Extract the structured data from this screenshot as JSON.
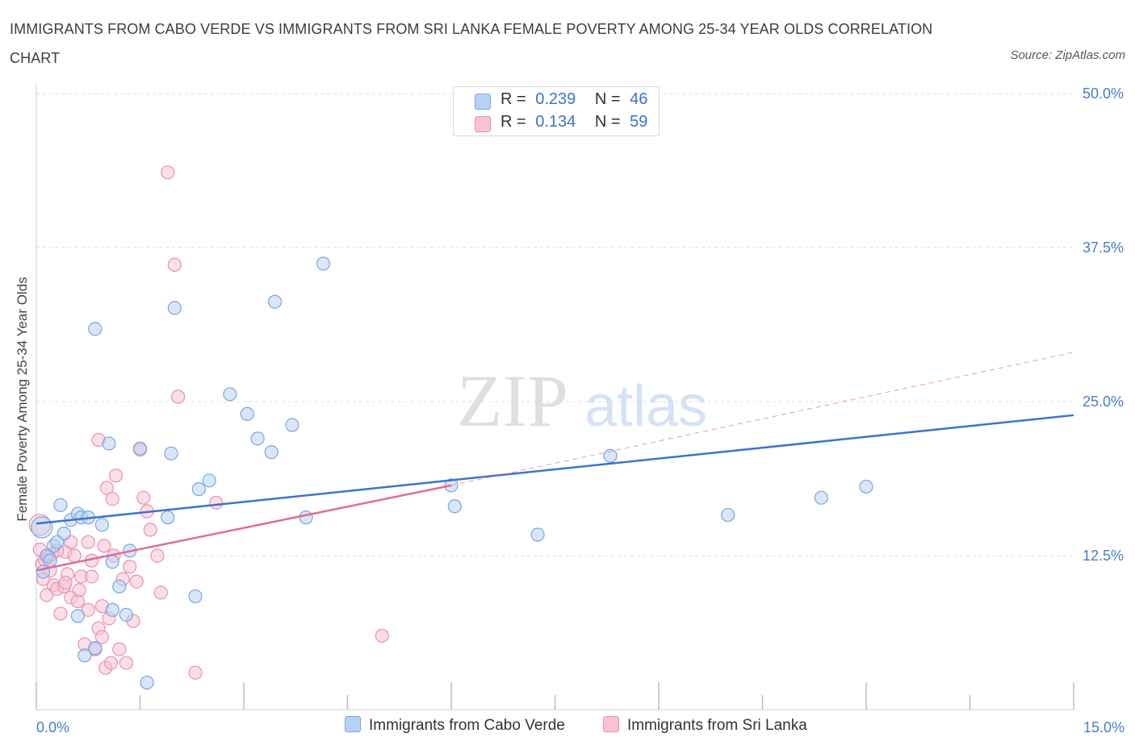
{
  "title": "IMMIGRANTS FROM CABO VERDE VS IMMIGRANTS FROM SRI LANKA FEMALE POVERTY AMONG 25-34 YEAR OLDS CORRELATION CHART",
  "source": "Source: ZipAtlas.com",
  "watermark": {
    "zip": "ZIP",
    "atlas": "atlas"
  },
  "legend_top": [
    {
      "r_label": "R =",
      "r_value": "0.239",
      "n_label": "N =",
      "n_value": "46"
    },
    {
      "r_label": "R =",
      "r_value": "0.134",
      "n_label": "N =",
      "n_value": "59"
    }
  ],
  "colors": {
    "blue_fill": "#b8d1f3",
    "blue_stroke": "#7aa6e0",
    "blue_line": "#3b73cf",
    "pink_fill": "#f7c3d4",
    "pink_stroke": "#ec8fb0",
    "pink_line": "#e06b96",
    "grid": "#dddddd",
    "tick_text": "#4a7cc9"
  },
  "chart_data": {
    "type": "scatter",
    "title": "IMMIGRANTS FROM CABO VERDE VS IMMIGRANTS FROM SRI LANKA FEMALE POVERTY AMONG 25-34 YEAR OLDS CORRELATION CHART",
    "xlabel": "",
    "ylabel": "Female Poverty Among 25-34 Year Olds",
    "xlim": [
      0,
      15
    ],
    "ylim": [
      0,
      50
    ],
    "x_tick_labels": [
      "0.0%",
      "15.0%"
    ],
    "y_ticks": [
      12.5,
      25.0,
      37.5,
      50.0
    ],
    "y_tick_labels": [
      "12.5%",
      "25.0%",
      "37.5%",
      "50.0%"
    ],
    "grid": true,
    "legend_position": "bottom-center",
    "series": [
      {
        "name": "Immigrants from Cabo Verde",
        "color": "blue",
        "R": 0.239,
        "N": 46,
        "trend": {
          "x": [
            0,
            15
          ],
          "y": [
            15.1,
            23.9
          ]
        },
        "points": [
          [
            0.08,
            14.8
          ],
          [
            0.1,
            11.2
          ],
          [
            0.15,
            12.5
          ],
          [
            0.2,
            12.1
          ],
          [
            0.25,
            13.3
          ],
          [
            0.35,
            16.6
          ],
          [
            0.4,
            14.3
          ],
          [
            0.5,
            15.4
          ],
          [
            0.6,
            15.9
          ],
          [
            0.65,
            15.6
          ],
          [
            0.75,
            15.6
          ],
          [
            0.6,
            7.6
          ],
          [
            0.7,
            4.4
          ],
          [
            0.85,
            5.0
          ],
          [
            0.85,
            30.9
          ],
          [
            0.95,
            15.0
          ],
          [
            1.05,
            21.6
          ],
          [
            1.1,
            8.1
          ],
          [
            1.1,
            12.0
          ],
          [
            1.2,
            10.0
          ],
          [
            1.3,
            7.7
          ],
          [
            1.35,
            12.9
          ],
          [
            1.5,
            21.2
          ],
          [
            1.6,
            2.2
          ],
          [
            1.9,
            15.6
          ],
          [
            1.95,
            20.8
          ],
          [
            2.0,
            32.6
          ],
          [
            2.3,
            9.2
          ],
          [
            2.35,
            17.9
          ],
          [
            2.5,
            18.6
          ],
          [
            2.8,
            25.6
          ],
          [
            3.05,
            24.0
          ],
          [
            3.2,
            22.0
          ],
          [
            3.4,
            20.9
          ],
          [
            3.45,
            33.1
          ],
          [
            3.7,
            23.1
          ],
          [
            3.9,
            15.6
          ],
          [
            4.15,
            36.2
          ],
          [
            6.0,
            18.2
          ],
          [
            6.05,
            16.5
          ],
          [
            7.25,
            14.2
          ],
          [
            8.3,
            20.6
          ],
          [
            10.0,
            15.8
          ],
          [
            11.35,
            17.2
          ],
          [
            12.0,
            18.1
          ],
          [
            0.3,
            13.6
          ]
        ]
      },
      {
        "name": "Immigrants from Sri Lanka",
        "color": "pink",
        "R": 0.134,
        "N": 59,
        "trend": {
          "x": [
            0,
            6
          ],
          "y": [
            11.3,
            18.2
          ]
        },
        "trend_extension": {
          "x": [
            6,
            15
          ],
          "y": [
            18.2,
            29.0
          ]
        },
        "points": [
          [
            0.05,
            15.0
          ],
          [
            0.05,
            13.0
          ],
          [
            0.08,
            11.8
          ],
          [
            0.1,
            10.6
          ],
          [
            0.12,
            12.2
          ],
          [
            0.15,
            9.3
          ],
          [
            0.2,
            11.3
          ],
          [
            0.22,
            12.6
          ],
          [
            0.25,
            10.1
          ],
          [
            0.3,
            9.8
          ],
          [
            0.35,
            7.8
          ],
          [
            0.4,
            10.0
          ],
          [
            0.42,
            12.8
          ],
          [
            0.45,
            11.0
          ],
          [
            0.5,
            9.1
          ],
          [
            0.5,
            13.6
          ],
          [
            0.55,
            12.5
          ],
          [
            0.6,
            8.8
          ],
          [
            0.62,
            9.7
          ],
          [
            0.65,
            10.8
          ],
          [
            0.7,
            5.3
          ],
          [
            0.75,
            13.6
          ],
          [
            0.75,
            8.1
          ],
          [
            0.8,
            12.1
          ],
          [
            0.8,
            10.8
          ],
          [
            0.85,
            4.9
          ],
          [
            0.9,
            6.6
          ],
          [
            0.9,
            21.9
          ],
          [
            0.95,
            8.4
          ],
          [
            0.95,
            5.9
          ],
          [
            0.98,
            13.3
          ],
          [
            1.0,
            3.4
          ],
          [
            1.02,
            18.0
          ],
          [
            1.05,
            7.4
          ],
          [
            1.08,
            3.8
          ],
          [
            1.1,
            17.1
          ],
          [
            1.12,
            12.5
          ],
          [
            1.15,
            19.0
          ],
          [
            1.2,
            4.9
          ],
          [
            1.25,
            10.6
          ],
          [
            1.3,
            3.8
          ],
          [
            1.35,
            11.6
          ],
          [
            1.4,
            7.2
          ],
          [
            1.45,
            10.4
          ],
          [
            1.5,
            21.1
          ],
          [
            1.55,
            17.2
          ],
          [
            1.6,
            16.1
          ],
          [
            1.65,
            14.6
          ],
          [
            1.75,
            12.5
          ],
          [
            1.8,
            9.5
          ],
          [
            1.9,
            43.6
          ],
          [
            2.0,
            36.1
          ],
          [
            2.05,
            25.4
          ],
          [
            2.3,
            3.0
          ],
          [
            2.6,
            16.8
          ],
          [
            5.0,
            6.0
          ],
          [
            0.3,
            12.9
          ],
          [
            0.42,
            10.3
          ],
          [
            0.18,
            12.4
          ]
        ]
      }
    ]
  }
}
